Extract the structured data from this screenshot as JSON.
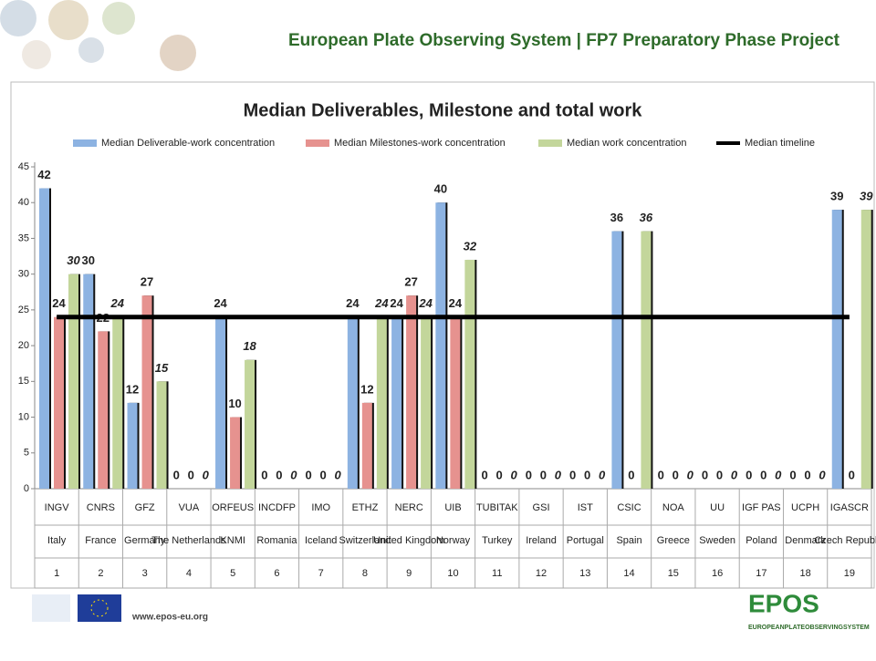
{
  "header": {
    "title": "European Plate Observing System | FP7 Preparatory Phase Project"
  },
  "footer": {
    "url": "www.epos-eu.org",
    "logo": "EPOS",
    "logo_tagline": "EUROPEANPLATEOBSERVINGSYSTEM"
  },
  "chart_data": {
    "type": "bar",
    "title": "Median Deliverables, Milestone and total work",
    "categories": [
      "INGV",
      "CNRS",
      "GFZ",
      "VUA",
      "ORFEUS",
      "INCDFP",
      "IMO",
      "ETHZ",
      "NERC",
      "UIB",
      "TUBITAK",
      "GSI",
      "IST",
      "CSIC",
      "NOA",
      "UU",
      "IGF PAS",
      "UCPH",
      "IGASCR"
    ],
    "countries": [
      "Italy",
      "France",
      "Germany",
      "The Netherlands",
      "KNMI",
      "Romania",
      "Iceland",
      "Switzerland",
      "United Kingdom",
      "Norway",
      "Turkey",
      "Ireland",
      "Portugal",
      "Spain",
      "Greece",
      "Sweden",
      "Poland",
      "Denmark",
      "Czech Republic"
    ],
    "partner_numbers": [
      1,
      2,
      3,
      4,
      5,
      6,
      7,
      8,
      9,
      10,
      11,
      12,
      13,
      14,
      15,
      16,
      17,
      18,
      19
    ],
    "series": [
      {
        "name": "Median Deliverable-work concentration",
        "color": "#8db3e2",
        "values": [
          42,
          30,
          12,
          0,
          24,
          0,
          0,
          24,
          24,
          40,
          0,
          0,
          0,
          36,
          0,
          0,
          0,
          0,
          39
        ]
      },
      {
        "name": "Median Milestones-work concentration",
        "color": "#e6928f",
        "values": [
          24,
          22,
          27,
          0,
          10,
          0,
          0,
          12,
          27,
          24,
          0,
          0,
          0,
          0,
          0,
          0,
          0,
          0,
          0
        ]
      },
      {
        "name": "Median work concentration",
        "color": "#c3d69b",
        "values": [
          30,
          24,
          15,
          0,
          18,
          0,
          0,
          24,
          24,
          32,
          0,
          0,
          0,
          36,
          0,
          0,
          0,
          0,
          39
        ]
      },
      {
        "name": "Median timeline",
        "color": "#000000",
        "type": "line",
        "values": [
          24,
          24,
          24,
          24,
          24,
          24,
          24,
          24,
          24,
          24,
          24,
          24,
          24,
          24,
          24,
          24,
          24,
          24,
          24
        ]
      }
    ],
    "ylim": [
      0,
      45
    ],
    "yticks": [
      0,
      5,
      10,
      15,
      20,
      25,
      30,
      35,
      40,
      45
    ],
    "grid": false,
    "legend": "top"
  }
}
